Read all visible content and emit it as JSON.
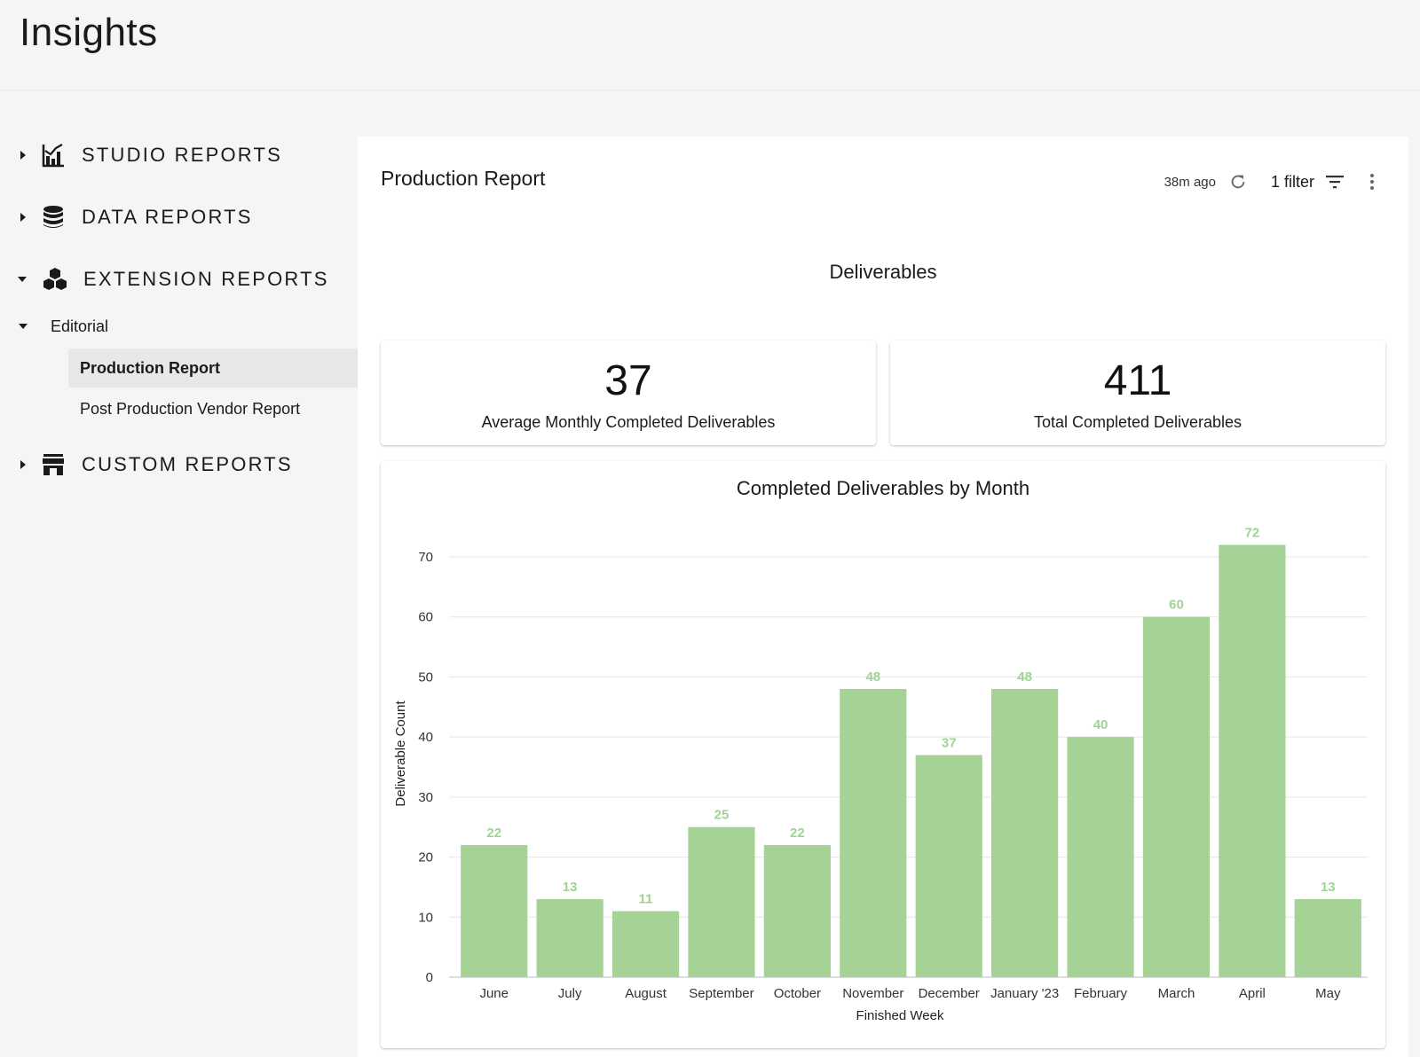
{
  "app": {
    "title": "Insights"
  },
  "sidebar": {
    "sections": [
      {
        "label": "STUDIO REPORTS",
        "icon": "chart-icon",
        "expanded": false
      },
      {
        "label": "DATA REPORTS",
        "icon": "database-icon",
        "expanded": false
      },
      {
        "label": "EXTENSION REPORTS",
        "icon": "cubes-icon",
        "expanded": true
      },
      {
        "label": "CUSTOM REPORTS",
        "icon": "storefront-icon",
        "expanded": false
      }
    ],
    "group": {
      "label": "Editorial"
    },
    "reports": [
      {
        "label": "Production Report",
        "active": true
      },
      {
        "label": "Post Production Vendor Report",
        "active": false
      }
    ]
  },
  "report": {
    "title": "Production Report",
    "updated": "38m ago",
    "filter_label": "1 filter",
    "section_heading": "Deliverables",
    "kpis": [
      {
        "value": "37",
        "label": "Average Monthly Completed Deliverables"
      },
      {
        "value": "411",
        "label": "Total Completed Deliverables"
      }
    ]
  },
  "chart_data": {
    "type": "bar",
    "title": "Completed Deliverables by Month",
    "xlabel": "Finished Week",
    "ylabel": "Deliverable Count",
    "categories": [
      "June",
      "July",
      "August",
      "September",
      "October",
      "November",
      "December",
      "January '23",
      "February",
      "March",
      "April",
      "May"
    ],
    "values": [
      22,
      13,
      11,
      25,
      22,
      48,
      37,
      48,
      40,
      60,
      72,
      13
    ],
    "yticks": [
      0,
      10,
      20,
      30,
      40,
      50,
      60,
      70
    ],
    "ylim": [
      0,
      70
    ],
    "grid": true,
    "bar_color": "#a5d395",
    "label_color": "#9fd394"
  }
}
